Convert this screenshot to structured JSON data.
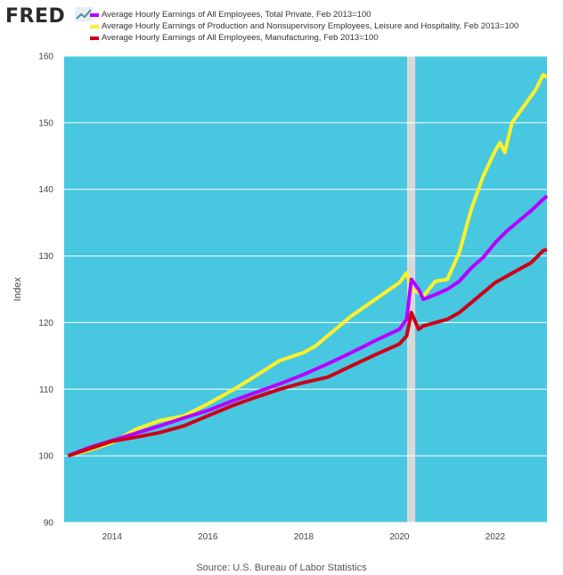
{
  "header": {
    "logo_text": "FRED",
    "logo_icon": "trend-line-icon"
  },
  "source": "Source: U.S. Bureau of Labor Statistics",
  "chart_data": {
    "type": "line",
    "ylabel": "Index",
    "xlabel": "",
    "ylim": [
      90,
      160
    ],
    "xlim": [
      2013.0,
      2023.08
    ],
    "yticks": [
      90,
      100,
      110,
      120,
      130,
      140,
      150,
      160
    ],
    "xticks": [
      2014,
      2016,
      2018,
      2020,
      2022
    ],
    "grid": "horizontal",
    "background_color": "#48C7E0",
    "recession": {
      "start": 2020.16,
      "end": 2020.33,
      "color": "#D9D9D9"
    },
    "legend_position": "top",
    "series": [
      {
        "name": "Average Hourly Earnings of All Employees, Total Private, Feb 2013=100",
        "color": "#B700FF",
        "points": [
          [
            2013.08,
            100
          ],
          [
            2013.5,
            101.2
          ],
          [
            2014.0,
            102.3
          ],
          [
            2014.5,
            103.4
          ],
          [
            2015.0,
            104.5
          ],
          [
            2015.5,
            105.7
          ],
          [
            2016.0,
            106.8
          ],
          [
            2016.5,
            108.2
          ],
          [
            2017.0,
            109.5
          ],
          [
            2017.5,
            110.8
          ],
          [
            2018.0,
            112.2
          ],
          [
            2018.5,
            113.8
          ],
          [
            2019.0,
            115.5
          ],
          [
            2019.5,
            117.3
          ],
          [
            2020.0,
            119.0
          ],
          [
            2020.15,
            120.5
          ],
          [
            2020.25,
            126.5
          ],
          [
            2020.4,
            125.0
          ],
          [
            2020.5,
            123.5
          ],
          [
            2020.75,
            124.2
          ],
          [
            2021.0,
            125.0
          ],
          [
            2021.25,
            126.2
          ],
          [
            2021.5,
            128.2
          ],
          [
            2021.75,
            129.8
          ],
          [
            2022.0,
            132.0
          ],
          [
            2022.25,
            133.8
          ],
          [
            2022.5,
            135.3
          ],
          [
            2022.75,
            136.8
          ],
          [
            2023.0,
            138.5
          ],
          [
            2023.08,
            139.0
          ]
        ]
      },
      {
        "name": "Average Hourly Earnings of Production and Nonsupervisory Employees, Leisure and Hospitality, Feb 2013=100",
        "color": "#FFF02A",
        "points": [
          [
            2013.08,
            100
          ],
          [
            2013.5,
            100.8
          ],
          [
            2014.0,
            102.0
          ],
          [
            2014.5,
            104.0
          ],
          [
            2015.0,
            105.3
          ],
          [
            2015.5,
            106.0
          ],
          [
            2016.0,
            107.8
          ],
          [
            2016.5,
            109.8
          ],
          [
            2017.0,
            112.0
          ],
          [
            2017.5,
            114.3
          ],
          [
            2018.0,
            115.5
          ],
          [
            2018.25,
            116.5
          ],
          [
            2018.5,
            118.0
          ],
          [
            2019.0,
            121.0
          ],
          [
            2019.5,
            123.5
          ],
          [
            2020.0,
            126.0
          ],
          [
            2020.15,
            127.5
          ],
          [
            2020.25,
            125.0
          ],
          [
            2020.4,
            124.5
          ],
          [
            2020.5,
            124.0
          ],
          [
            2020.75,
            126.2
          ],
          [
            2021.0,
            126.5
          ],
          [
            2021.25,
            130.5
          ],
          [
            2021.5,
            137.0
          ],
          [
            2021.75,
            142.0
          ],
          [
            2022.0,
            145.8
          ],
          [
            2022.1,
            147.0
          ],
          [
            2022.2,
            145.5
          ],
          [
            2022.35,
            150.0
          ],
          [
            2022.6,
            152.5
          ],
          [
            2022.85,
            155.0
          ],
          [
            2023.0,
            157.2
          ],
          [
            2023.08,
            156.8
          ]
        ]
      },
      {
        "name": "Average Hourly Earnings of All Employees, Manufacturing, Feb 2013=100",
        "color": "#CC0018",
        "points": [
          [
            2013.08,
            100
          ],
          [
            2013.5,
            101.0
          ],
          [
            2014.0,
            102.2
          ],
          [
            2014.5,
            102.8
          ],
          [
            2015.0,
            103.5
          ],
          [
            2015.5,
            104.5
          ],
          [
            2016.0,
            106.0
          ],
          [
            2016.5,
            107.5
          ],
          [
            2017.0,
            108.8
          ],
          [
            2017.5,
            110.0
          ],
          [
            2018.0,
            111.0
          ],
          [
            2018.5,
            111.8
          ],
          [
            2019.0,
            113.5
          ],
          [
            2019.5,
            115.2
          ],
          [
            2020.0,
            116.8
          ],
          [
            2020.15,
            118.0
          ],
          [
            2020.25,
            121.5
          ],
          [
            2020.4,
            119.0
          ],
          [
            2020.5,
            119.5
          ],
          [
            2020.75,
            120.0
          ],
          [
            2021.0,
            120.5
          ],
          [
            2021.25,
            121.5
          ],
          [
            2021.5,
            123.0
          ],
          [
            2021.75,
            124.5
          ],
          [
            2022.0,
            126.0
          ],
          [
            2022.25,
            127.0
          ],
          [
            2022.5,
            128.0
          ],
          [
            2022.75,
            129.0
          ],
          [
            2023.0,
            130.8
          ],
          [
            2023.08,
            131.0
          ]
        ]
      }
    ]
  }
}
